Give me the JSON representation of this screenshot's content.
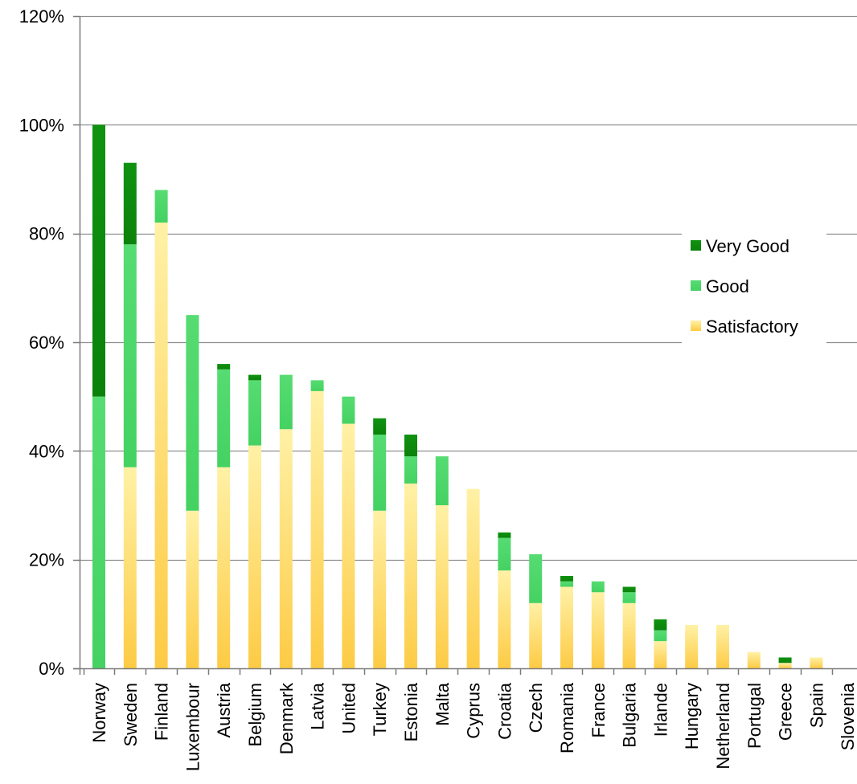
{
  "chart_data": {
    "type": "bar",
    "stacked": true,
    "categories": [
      "Norway",
      "Sweden",
      "Finland",
      "Luxembour",
      "Austria",
      "Belgium",
      "Denmark",
      "Latvia",
      "United",
      "Turkey",
      "Estonia",
      "Malta",
      "Cyprus",
      "Croatia",
      "Czech",
      "Romania",
      "France",
      "Bulgaria",
      "Irlande",
      "Hungary",
      "Netherland",
      "Portugal",
      "Greece",
      "Spain",
      "Slovenia"
    ],
    "series": [
      {
        "name": "Satisfactory",
        "color": "#FDD75A",
        "values": [
          0,
          37,
          82,
          29,
          37,
          41,
          44,
          51,
          45,
          29,
          34,
          30,
          33,
          18,
          12,
          15,
          14,
          12,
          5,
          8,
          8,
          3,
          1,
          2,
          0
        ]
      },
      {
        "name": "Good",
        "color": "#4DD86A",
        "values": [
          50,
          41,
          6,
          36,
          18,
          12,
          10,
          2,
          5,
          14,
          5,
          9,
          0,
          6,
          9,
          1,
          2,
          2,
          2,
          0,
          0,
          0,
          0,
          0,
          0
        ]
      },
      {
        "name": "Very Good",
        "color": "#0E8A0E",
        "values": [
          50,
          15,
          0,
          0,
          1,
          1,
          0,
          0,
          0,
          3,
          4,
          0,
          0,
          1,
          0,
          1,
          0,
          1,
          2,
          0,
          0,
          0,
          1,
          0,
          0
        ]
      }
    ],
    "title": "",
    "xlabel": "",
    "ylabel": "",
    "ylim": [
      0,
      120
    ],
    "yticks": [
      0,
      20,
      40,
      60,
      80,
      100,
      120
    ],
    "ytick_labels": [
      "0%",
      "20%",
      "40%",
      "60%",
      "80%",
      "100%",
      "120%"
    ],
    "grid": true,
    "legend": {
      "position": "right",
      "entries": [
        "Very Good",
        "Good",
        "Satisfactory"
      ]
    }
  }
}
